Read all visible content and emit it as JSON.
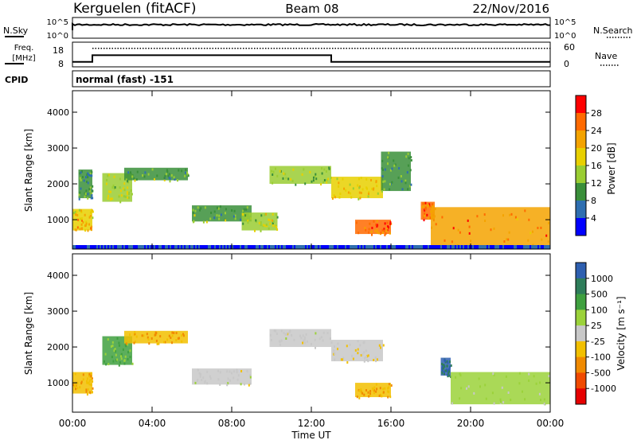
{
  "header": {
    "station": "Kerguelen (fitACF)",
    "beam": "Beam 08",
    "date": "22/Nov/2016"
  },
  "panels": {
    "nsky": {
      "left_label": "N.Sky",
      "left_ticks": [
        "10^5",
        "10^0"
      ],
      "right_ticks": [
        "10^5",
        "10^0"
      ],
      "right_label": "N.Search"
    },
    "freq": {
      "left_label_top": "Freq.",
      "left_label_unit": "[MHz]",
      "left_ticks": [
        "18",
        "8"
      ],
      "right_ticks": [
        "60",
        "0"
      ],
      "right_label": "Nave"
    },
    "cpid": {
      "label": "CPID",
      "value": "normal (fast) -151"
    }
  },
  "colorbars": {
    "power": {
      "title": "Power [dB]",
      "ticks": [
        "28",
        "24",
        "20",
        "16",
        "12",
        "8",
        "4"
      ],
      "colors": [
        "#ff0000",
        "#ff6a00",
        "#f4a300",
        "#e8d000",
        "#9acd32",
        "#3a8f3a",
        "#2e6eb0",
        "#0000ff"
      ]
    },
    "velocity": {
      "title": "Velocity [m s⁻¹]",
      "ticks": [
        "1000",
        "500",
        "100",
        "25",
        "-25",
        "-100",
        "-500",
        "-1000"
      ],
      "colors": [
        "#2e5fb0",
        "#2e7d5a",
        "#3fa03f",
        "#9bd23a",
        "#c8c8c8",
        "#f2c000",
        "#f08a00",
        "#f04a00",
        "#e60000"
      ]
    }
  },
  "axes": {
    "y_label": "Slant Range [km]",
    "y_ticks": [
      "4000",
      "3000",
      "2000",
      "1000"
    ],
    "x_ticks": [
      "00:00",
      "04:00",
      "08:00",
      "12:00",
      "16:00",
      "20:00",
      "00:00"
    ],
    "x_label": "Time UT"
  },
  "chart_data": {
    "type": "heatmap",
    "title": "Kerguelen (fitACF) Beam 08 22/Nov/2016",
    "xlabel": "Time UT",
    "ylabel": "Slant Range [km]",
    "xlim_hours": [
      0,
      24
    ],
    "ylim_km": [
      180,
      4600
    ],
    "freq_mhz": {
      "segments": [
        {
          "t_start": 0.0,
          "t_end": 1.0,
          "value": 10.0
        },
        {
          "t_start": 1.0,
          "t_end": 13.0,
          "value": 12.7
        },
        {
          "t_start": 13.0,
          "t_end": 24.0,
          "value": 10.0
        }
      ]
    },
    "nave_dotted_level": 45,
    "power_regions": [
      {
        "t_start": 0.0,
        "t_end": 1.0,
        "r_start": 700,
        "r_end": 1300,
        "db": 20
      },
      {
        "t_start": 0.3,
        "t_end": 1.0,
        "r_start": 1600,
        "r_end": 2400,
        "db": 10
      },
      {
        "t_start": 1.5,
        "t_end": 3.0,
        "r_start": 1500,
        "r_end": 2300,
        "db": 16
      },
      {
        "t_start": 2.6,
        "t_end": 5.8,
        "r_start": 2100,
        "r_end": 2450,
        "db": 12
      },
      {
        "t_start": 6.0,
        "t_end": 9.0,
        "r_start": 950,
        "r_end": 1400,
        "db": 12
      },
      {
        "t_start": 8.5,
        "t_end": 10.3,
        "r_start": 700,
        "r_end": 1200,
        "db": 16
      },
      {
        "t_start": 9.9,
        "t_end": 13.0,
        "r_start": 2000,
        "r_end": 2500,
        "db": 14
      },
      {
        "t_start": 13.0,
        "t_end": 15.6,
        "r_start": 1600,
        "r_end": 2200,
        "db": 18
      },
      {
        "t_start": 14.2,
        "t_end": 16.0,
        "r_start": 600,
        "r_end": 1000,
        "db": 26
      },
      {
        "t_start": 15.5,
        "t_end": 17.0,
        "r_start": 1800,
        "r_end": 2900,
        "db": 10
      },
      {
        "t_start": 17.5,
        "t_end": 18.2,
        "r_start": 1000,
        "r_end": 1500,
        "db": 26
      },
      {
        "t_start": 18.0,
        "t_end": 24.0,
        "r_start": 250,
        "r_end": 1350,
        "db": 24
      }
    ],
    "velocity_regions": [
      {
        "t_start": 0.0,
        "t_end": 1.0,
        "r_start": 700,
        "r_end": 1300,
        "v": -100
      },
      {
        "t_start": 1.5,
        "t_end": 3.0,
        "r_start": 1500,
        "r_end": 2300,
        "v": 100
      },
      {
        "t_start": 2.6,
        "t_end": 5.8,
        "r_start": 2100,
        "r_end": 2450,
        "v": -100
      },
      {
        "t_start": 6.0,
        "t_end": 9.0,
        "r_start": 950,
        "r_end": 1400,
        "v": 0
      },
      {
        "t_start": 9.9,
        "t_end": 13.0,
        "r_start": 2000,
        "r_end": 2500,
        "v": 0
      },
      {
        "t_start": 13.0,
        "t_end": 15.6,
        "r_start": 1600,
        "r_end": 2200,
        "v": -25
      },
      {
        "t_start": 14.2,
        "t_end": 16.0,
        "r_start": 600,
        "r_end": 1000,
        "v": -100
      },
      {
        "t_start": 18.5,
        "t_end": 19.0,
        "r_start": 1200,
        "r_end": 1700,
        "v": 1000
      },
      {
        "t_start": 19.0,
        "t_end": 24.0,
        "r_start": 400,
        "r_end": 1300,
        "v": 25
      }
    ]
  }
}
